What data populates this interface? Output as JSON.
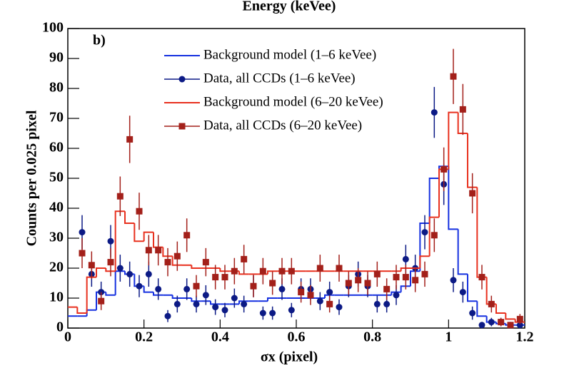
{
  "chart_data": {
    "type": "histogram",
    "title": "Energy (keVee)",
    "panel_label": "b)",
    "xlabel": "σx (pixel)",
    "ylabel": "Counts per 0.025 pixel",
    "xlim": [
      0,
      1.2
    ],
    "ylim": [
      0,
      100
    ],
    "xticks": [
      0,
      0.2,
      0.4,
      0.6,
      0.8,
      1,
      1.2
    ],
    "yticks": [
      0,
      10,
      20,
      30,
      40,
      50,
      60,
      70,
      80,
      90,
      100
    ],
    "legend": "top",
    "bins": [
      0,
      0.025,
      0.05,
      0.075,
      0.1,
      0.125,
      0.15,
      0.175,
      0.2,
      0.225,
      0.25,
      0.275,
      0.3,
      0.325,
      0.35,
      0.375,
      0.4,
      0.425,
      0.45,
      0.475,
      0.5,
      0.525,
      0.55,
      0.575,
      0.6,
      0.625,
      0.65,
      0.675,
      0.7,
      0.725,
      0.75,
      0.775,
      0.8,
      0.825,
      0.85,
      0.875,
      0.9,
      0.925,
      0.95,
      0.975,
      1,
      1.025,
      1.05,
      1.075,
      1.1,
      1.125,
      1.15,
      1.175,
      1.2
    ],
    "x": [
      0.0125,
      0.0375,
      0.0625,
      0.0875,
      0.1125,
      0.1375,
      0.1625,
      0.1875,
      0.2125,
      0.2375,
      0.2625,
      0.2875,
      0.3125,
      0.3375,
      0.3625,
      0.3875,
      0.4125,
      0.4375,
      0.4625,
      0.4875,
      0.5125,
      0.5375,
      0.5625,
      0.5875,
      0.6125,
      0.6375,
      0.6625,
      0.6875,
      0.7125,
      0.7375,
      0.7625,
      0.7875,
      0.8125,
      0.8375,
      0.8625,
      0.8875,
      0.9125,
      0.9375,
      0.9625,
      0.9875,
      1.0125,
      1.0375,
      1.0625,
      1.0875,
      1.1125,
      1.1375,
      1.1625,
      1.1875
    ],
    "series": [
      {
        "name": "Background model (1–6 keVee)",
        "color": "#1530e0",
        "style": "hist",
        "values": [
          4,
          4,
          6,
          12,
          11,
          19,
          18,
          14,
          12,
          11,
          11,
          10,
          10,
          9,
          9,
          8,
          8,
          8,
          9,
          9,
          9,
          10,
          10,
          10,
          10,
          10,
          10,
          11,
          11,
          11,
          11,
          11,
          11,
          11,
          12,
          14,
          19,
          35,
          50,
          54,
          33,
          18,
          9,
          4,
          2,
          1.5,
          1,
          1
        ]
      },
      {
        "name": "Data, all CCDs (1–6 keVee)",
        "color": "#0c1a85",
        "style": "points",
        "marker": "circle",
        "values": [
          null,
          32,
          18,
          12,
          29,
          20,
          18,
          14,
          18,
          13,
          4,
          8,
          13,
          8,
          11,
          7,
          6,
          10,
          8,
          14,
          5,
          5,
          13,
          6,
          13,
          13,
          9,
          12,
          7,
          14,
          18,
          14,
          8,
          8,
          11,
          23,
          20,
          32,
          72,
          48,
          16,
          12,
          5,
          1,
          2,
          2,
          1,
          1
        ],
        "errors": [
          null,
          5.7,
          4.2,
          3.5,
          5.4,
          4.5,
          4.2,
          3.7,
          4.2,
          3.6,
          2,
          2.8,
          3.6,
          2.8,
          3.3,
          2.6,
          2.4,
          3.2,
          2.8,
          3.7,
          2.2,
          2.2,
          3.6,
          2.4,
          3.6,
          3.6,
          3,
          3.5,
          2.6,
          3.7,
          4.2,
          3.7,
          2.8,
          2.8,
          3.3,
          4.8,
          4.5,
          5.7,
          8.5,
          6.9,
          4,
          3.5,
          2.2,
          1,
          1.4,
          1.4,
          1,
          1
        ]
      },
      {
        "name": "Background model (6–20 keVee)",
        "color": "#e8301e",
        "style": "hist",
        "values": [
          7,
          5,
          17,
          20,
          19,
          39,
          35,
          29,
          32,
          27,
          24,
          21,
          21,
          20,
          20,
          20,
          19,
          19,
          18,
          18,
          18,
          19,
          19,
          19,
          19,
          19,
          19,
          19,
          19,
          19,
          19,
          19,
          19,
          19,
          19,
          20,
          20,
          24,
          37,
          53,
          72,
          65,
          47,
          17,
          8,
          5,
          3,
          2
        ]
      },
      {
        "name": "Data, all CCDs (6–20 keVee)",
        "color": "#a3201a",
        "style": "points",
        "marker": "square",
        "values": [
          null,
          25,
          21,
          9,
          22,
          44,
          63,
          39,
          26,
          26,
          22,
          24,
          31,
          14,
          22,
          17,
          17,
          19,
          23,
          14,
          19,
          15,
          19,
          19,
          12,
          11,
          20,
          8,
          20,
          15,
          16,
          15,
          18,
          13,
          17,
          17,
          16,
          18,
          31,
          53,
          84,
          73,
          45,
          17,
          8,
          2,
          1,
          3
        ],
        "errors": [
          null,
          5,
          4.6,
          3,
          4.7,
          6.6,
          7.9,
          6.2,
          5.1,
          5.1,
          4.7,
          4.9,
          5.6,
          3.7,
          4.7,
          4.1,
          4.1,
          4.4,
          4.8,
          3.7,
          4.4,
          3.9,
          4.4,
          4.4,
          3.5,
          3.3,
          4.5,
          2.8,
          4.5,
          3.9,
          4,
          3.9,
          4.2,
          3.6,
          4.1,
          4.1,
          4,
          4.2,
          5.6,
          7.3,
          9.2,
          8.5,
          6.7,
          4.1,
          2.8,
          1.4,
          1,
          1.7
        ]
      }
    ]
  }
}
